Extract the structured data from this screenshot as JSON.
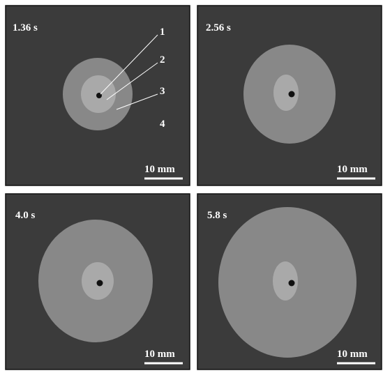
{
  "panels": [
    {
      "time": "1.36 s",
      "scale_bar": "10 mm"
    },
    {
      "time": "2.56 s",
      "scale_bar": "10 mm"
    },
    {
      "time": "4.0 s",
      "scale_bar": "10 mm"
    },
    {
      "time": "5.8 s",
      "scale_bar": "10 mm"
    }
  ],
  "annotations": [
    "1",
    "2",
    "3",
    "4"
  ]
}
